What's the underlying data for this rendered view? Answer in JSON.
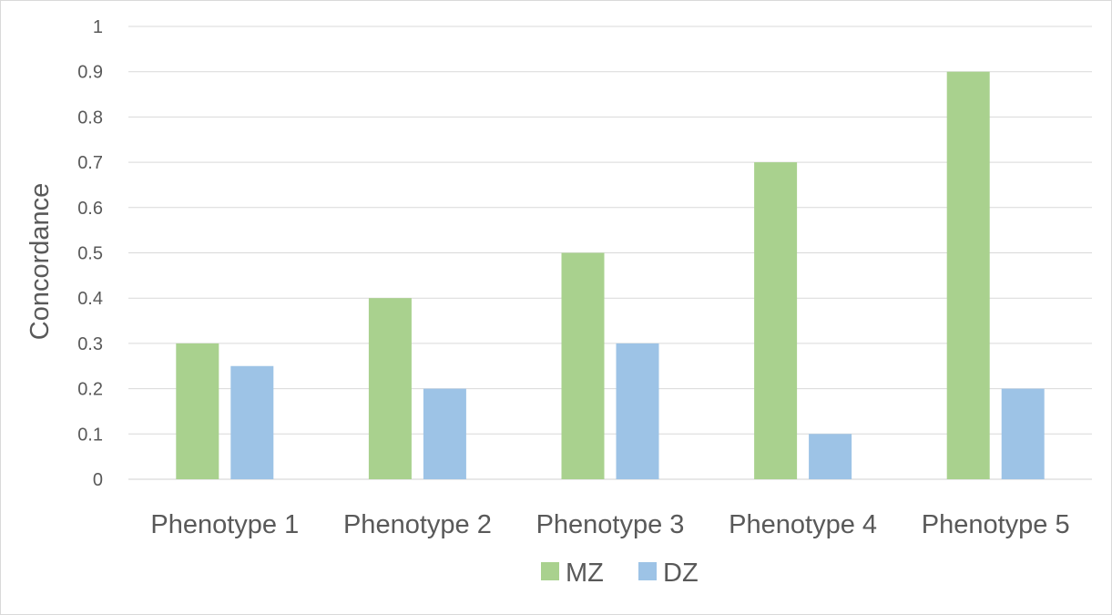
{
  "chart_data": {
    "type": "bar",
    "title": "",
    "xlabel": "",
    "ylabel": "Concordance",
    "ylim": [
      0,
      1
    ],
    "yticks": [
      "0",
      "0.1",
      "0.2",
      "0.3",
      "0.4",
      "0.5",
      "0.6",
      "0.7",
      "0.8",
      "0.9",
      "1"
    ],
    "categories": [
      "Phenotype 1",
      "Phenotype 2",
      "Phenotype 3",
      "Phenotype 4",
      "Phenotype 5"
    ],
    "series": [
      {
        "name": "MZ",
        "color": "#a9d18e",
        "values": [
          0.3,
          0.4,
          0.5,
          0.7,
          0.9
        ]
      },
      {
        "name": "DZ",
        "color": "#9dc3e6",
        "values": [
          0.25,
          0.2,
          0.3,
          0.1,
          0.2
        ]
      }
    ],
    "grid": true,
    "legend": "bottom"
  }
}
